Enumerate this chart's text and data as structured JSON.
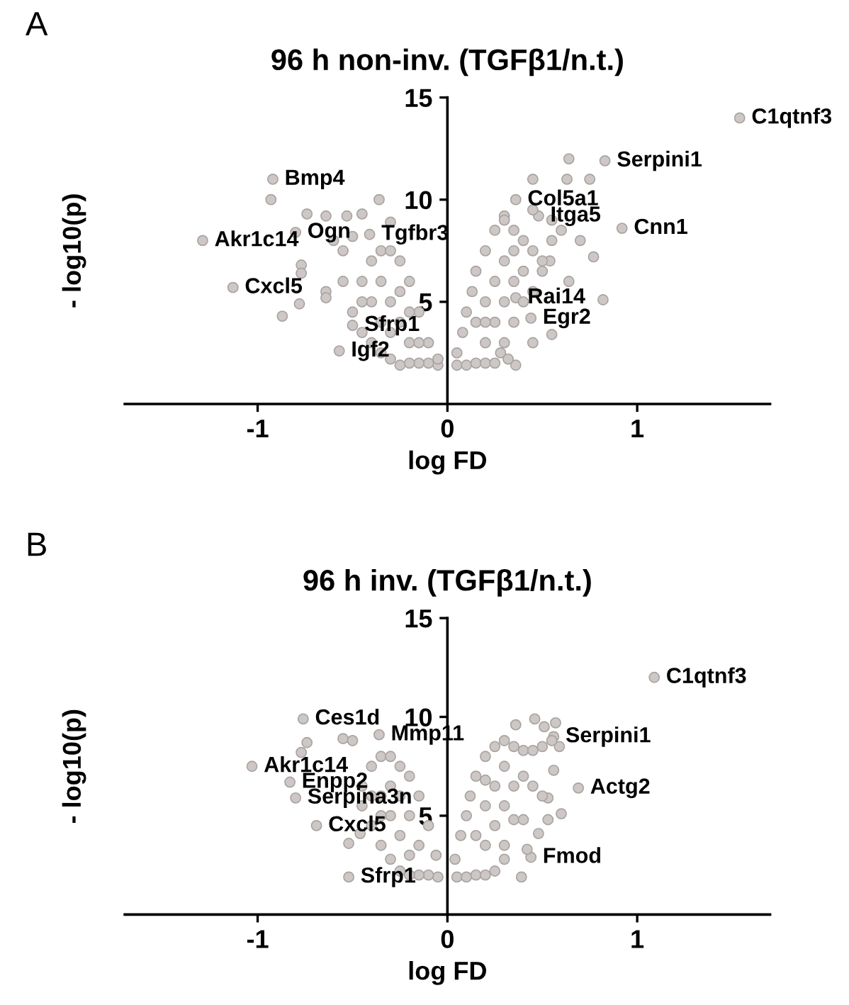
{
  "chart_data": [
    {
      "type": "scatter",
      "title": "96 h non-inv. (TGFβ1/n.t.)",
      "xlabel": "log FD",
      "ylabel": "- log10(p)",
      "xlim": [
        -1.7,
        1.7
      ],
      "ylim": [
        0,
        15
      ],
      "xticks": [
        -1,
        0,
        1
      ],
      "yticks": [
        5,
        10,
        15
      ],
      "grid": false,
      "legend": false,
      "marker": "circle",
      "series": [
        {
          "color": "#cdc8c6",
          "x": [
            1.54,
            0.83,
            -0.92,
            -1.29,
            -1.13,
            0.92,
            0.36,
            0.48,
            -0.8,
            -0.41,
            0.36,
            0.44,
            -0.5,
            -0.57,
            0.64,
            0.45,
            0.63,
            0.75,
            0.77,
            0.7,
            0.82,
            0.36,
            0.55,
            0.45,
            0.64,
            0.54,
            0.3,
            -0.93,
            -0.36,
            -0.74,
            -0.64,
            -0.53,
            -0.45,
            -0.77,
            -0.77,
            -0.64,
            -0.78,
            -0.87,
            -0.64,
            -0.55,
            -0.3,
            -0.05,
            -0.1,
            -0.15,
            -0.2,
            -0.25,
            -0.3,
            -0.35,
            -0.4,
            -0.45,
            -0.5,
            -0.45,
            -0.4,
            -0.35,
            -0.3,
            -0.25,
            -0.2,
            -0.15,
            -0.1,
            -0.05,
            -0.2,
            -0.25,
            -0.3,
            -0.35,
            -0.2,
            -0.3,
            -0.15,
            -0.25,
            -0.4,
            -0.35,
            -0.45,
            -0.55,
            -0.6,
            -0.5,
            0.05,
            0.1,
            0.15,
            0.2,
            0.25,
            0.05,
            0.08,
            0.1,
            0.13,
            0.15,
            0.2,
            0.25,
            0.3,
            0.35,
            0.4,
            0.45,
            0.5,
            0.4,
            0.35,
            0.3,
            0.25,
            0.2,
            0.3,
            0.35,
            0.4,
            0.45,
            0.5,
            0.2,
            0.25,
            0.3,
            0.35,
            0.15,
            0.2,
            0.45,
            0.55,
            0.6,
            0.55,
            0.28,
            0.32
          ],
          "values": [
            14.0,
            11.9,
            11.0,
            8.0,
            5.7,
            8.6,
            10.0,
            9.2,
            8.4,
            8.3,
            5.2,
            4.2,
            3.85,
            2.6,
            12.0,
            11.0,
            11.0,
            11.0,
            7.2,
            8.0,
            5.1,
            1.9,
            3.4,
            3.0,
            6.0,
            7.0,
            9.2,
            10.0,
            10.0,
            9.3,
            9.2,
            9.2,
            9.3,
            6.8,
            6.4,
            5.5,
            4.9,
            4.3,
            5.2,
            6.0,
            8.9,
            1.9,
            2.0,
            2.0,
            2.0,
            1.9,
            2.2,
            2.5,
            3.0,
            3.5,
            4.5,
            6.0,
            7.0,
            7.5,
            7.5,
            7.0,
            6.0,
            4.5,
            3.0,
            2.2,
            3.0,
            4.0,
            5.0,
            6.0,
            4.5,
            3.5,
            3.0,
            5.5,
            5.0,
            4.0,
            5.0,
            7.5,
            8.0,
            8.2,
            1.9,
            1.9,
            2.0,
            2.0,
            2.0,
            2.5,
            3.5,
            4.5,
            5.5,
            6.5,
            7.5,
            8.5,
            9.0,
            8.5,
            8.0,
            7.5,
            7.0,
            6.5,
            6.0,
            5.0,
            4.0,
            3.0,
            3.0,
            4.0,
            5.0,
            5.5,
            6.5,
            5.0,
            6.0,
            7.0,
            7.5,
            4.0,
            4.0,
            9.5,
            9.0,
            8.5,
            8.0,
            2.5,
            2.2
          ]
        }
      ],
      "annotations": [
        "A",
        {
          "text": "C1qtnf3",
          "x": 1.54,
          "y": 14.0
        },
        {
          "text": "Serpini1",
          "x": 0.83,
          "y": 11.9
        },
        {
          "text": "Bmp4",
          "x": -0.92,
          "y": 11.0
        },
        {
          "text": "Akr1c14",
          "x": -1.29,
          "y": 8.0
        },
        {
          "text": "Cxcl5",
          "x": -1.13,
          "y": 5.7
        },
        {
          "text": "Cnn1",
          "x": 0.92,
          "y": 8.6
        },
        {
          "text": "Col5a1",
          "x": 0.36,
          "y": 10.0
        },
        {
          "text": "Itga5",
          "x": 0.48,
          "y": 9.2
        },
        {
          "text": "Ogn",
          "x": -0.8,
          "y": 8.4
        },
        {
          "text": "Tgfbr3",
          "x": -0.41,
          "y": 8.3
        },
        {
          "text": "Rai14",
          "x": 0.36,
          "y": 5.2
        },
        {
          "text": "Egr2",
          "x": 0.44,
          "y": 4.2
        },
        {
          "text": "Sfrp1",
          "x": -0.5,
          "y": 3.85
        },
        {
          "text": "Igf2",
          "x": -0.57,
          "y": 2.6
        }
      ]
    },
    {
      "type": "scatter",
      "title": "96 h inv. (TGFβ1/n.t.)",
      "xlabel": "log FD",
      "ylabel": "- log10(p)",
      "xlim": [
        -1.7,
        1.7
      ],
      "ylim": [
        0,
        15
      ],
      "xticks": [
        -1,
        0,
        1
      ],
      "yticks": [
        5,
        10,
        15
      ],
      "grid": false,
      "legend": false,
      "marker": "circle",
      "series": [
        {
          "color": "#cdc8c6",
          "x": [
            1.09,
            -0.76,
            -0.36,
            -1.03,
            -0.83,
            -0.8,
            -0.69,
            -0.52,
            0.56,
            0.69,
            0.44,
            0.46,
            0.57,
            0.36,
            0.51,
            0.59,
            0.56,
            0.53,
            0.6,
            0.53,
            0.48,
            0.39,
            0.42,
            -0.74,
            -0.77,
            -0.55,
            -0.5,
            -0.52,
            -0.46,
            -0.05,
            -0.1,
            -0.15,
            -0.2,
            -0.25,
            -0.3,
            -0.35,
            -0.4,
            -0.45,
            -0.45,
            -0.4,
            -0.35,
            -0.3,
            -0.25,
            -0.2,
            -0.15,
            -0.1,
            -0.06,
            -0.2,
            -0.25,
            -0.3,
            -0.35,
            -0.3,
            -0.2,
            -0.15,
            -0.4,
            -0.35,
            -0.25,
            0.05,
            0.1,
            0.15,
            0.2,
            0.25,
            0.3,
            0.04,
            0.07,
            0.1,
            0.12,
            0.15,
            0.2,
            0.25,
            0.3,
            0.35,
            0.4,
            0.45,
            0.5,
            0.55,
            0.4,
            0.35,
            0.3,
            0.25,
            0.2,
            0.15,
            0.2,
            0.25,
            0.3,
            0.35,
            0.4,
            0.45,
            0.5,
            0.3,
            0.2
          ],
          "values": [
            12.0,
            9.9,
            9.1,
            7.5,
            6.7,
            5.9,
            4.5,
            1.9,
            9.0,
            6.4,
            2.9,
            9.9,
            9.7,
            9.6,
            9.5,
            8.5,
            7.3,
            5.9,
            5.1,
            4.8,
            4.1,
            1.9,
            3.3,
            8.7,
            8.2,
            8.9,
            8.8,
            3.6,
            4.1,
            1.9,
            2.0,
            2.0,
            2.0,
            2.2,
            2.8,
            3.5,
            4.5,
            5.5,
            6.5,
            7.5,
            8.0,
            8.0,
            7.5,
            7.0,
            6.0,
            4.5,
            3.0,
            3.0,
            4.0,
            5.0,
            6.0,
            6.5,
            5.0,
            3.5,
            6.0,
            5.0,
            6.0,
            1.9,
            1.9,
            2.0,
            2.0,
            2.2,
            2.8,
            2.8,
            4.0,
            5.0,
            6.0,
            7.0,
            8.0,
            8.5,
            8.8,
            8.5,
            8.3,
            8.3,
            8.5,
            8.8,
            7.0,
            6.5,
            5.5,
            4.5,
            3.5,
            4.0,
            5.5,
            6.5,
            7.5,
            4.8,
            4.8,
            6.5,
            6.0,
            3.5,
            6.8
          ]
        }
      ],
      "annotations": [
        "B",
        {
          "text": "C1qtnf3",
          "x": 1.09,
          "y": 12.0
        },
        {
          "text": "Ces1d",
          "x": -0.76,
          "y": 9.9
        },
        {
          "text": "Mmp11",
          "x": -0.36,
          "y": 9.1
        },
        {
          "text": "Serpini1",
          "x": 0.56,
          "y": 9.0
        },
        {
          "text": "Akr1c14",
          "x": -1.03,
          "y": 7.5
        },
        {
          "text": "Enpp2",
          "x": -0.83,
          "y": 6.7
        },
        {
          "text": "Actg2",
          "x": 0.69,
          "y": 6.4
        },
        {
          "text": "Serpina3n",
          "x": -0.8,
          "y": 5.9
        },
        {
          "text": "Cxcl5",
          "x": -0.69,
          "y": 4.5
        },
        {
          "text": "Fmod",
          "x": 0.44,
          "y": 2.9
        },
        {
          "text": "Sfrp1",
          "x": -0.52,
          "y": 1.9
        }
      ]
    }
  ]
}
